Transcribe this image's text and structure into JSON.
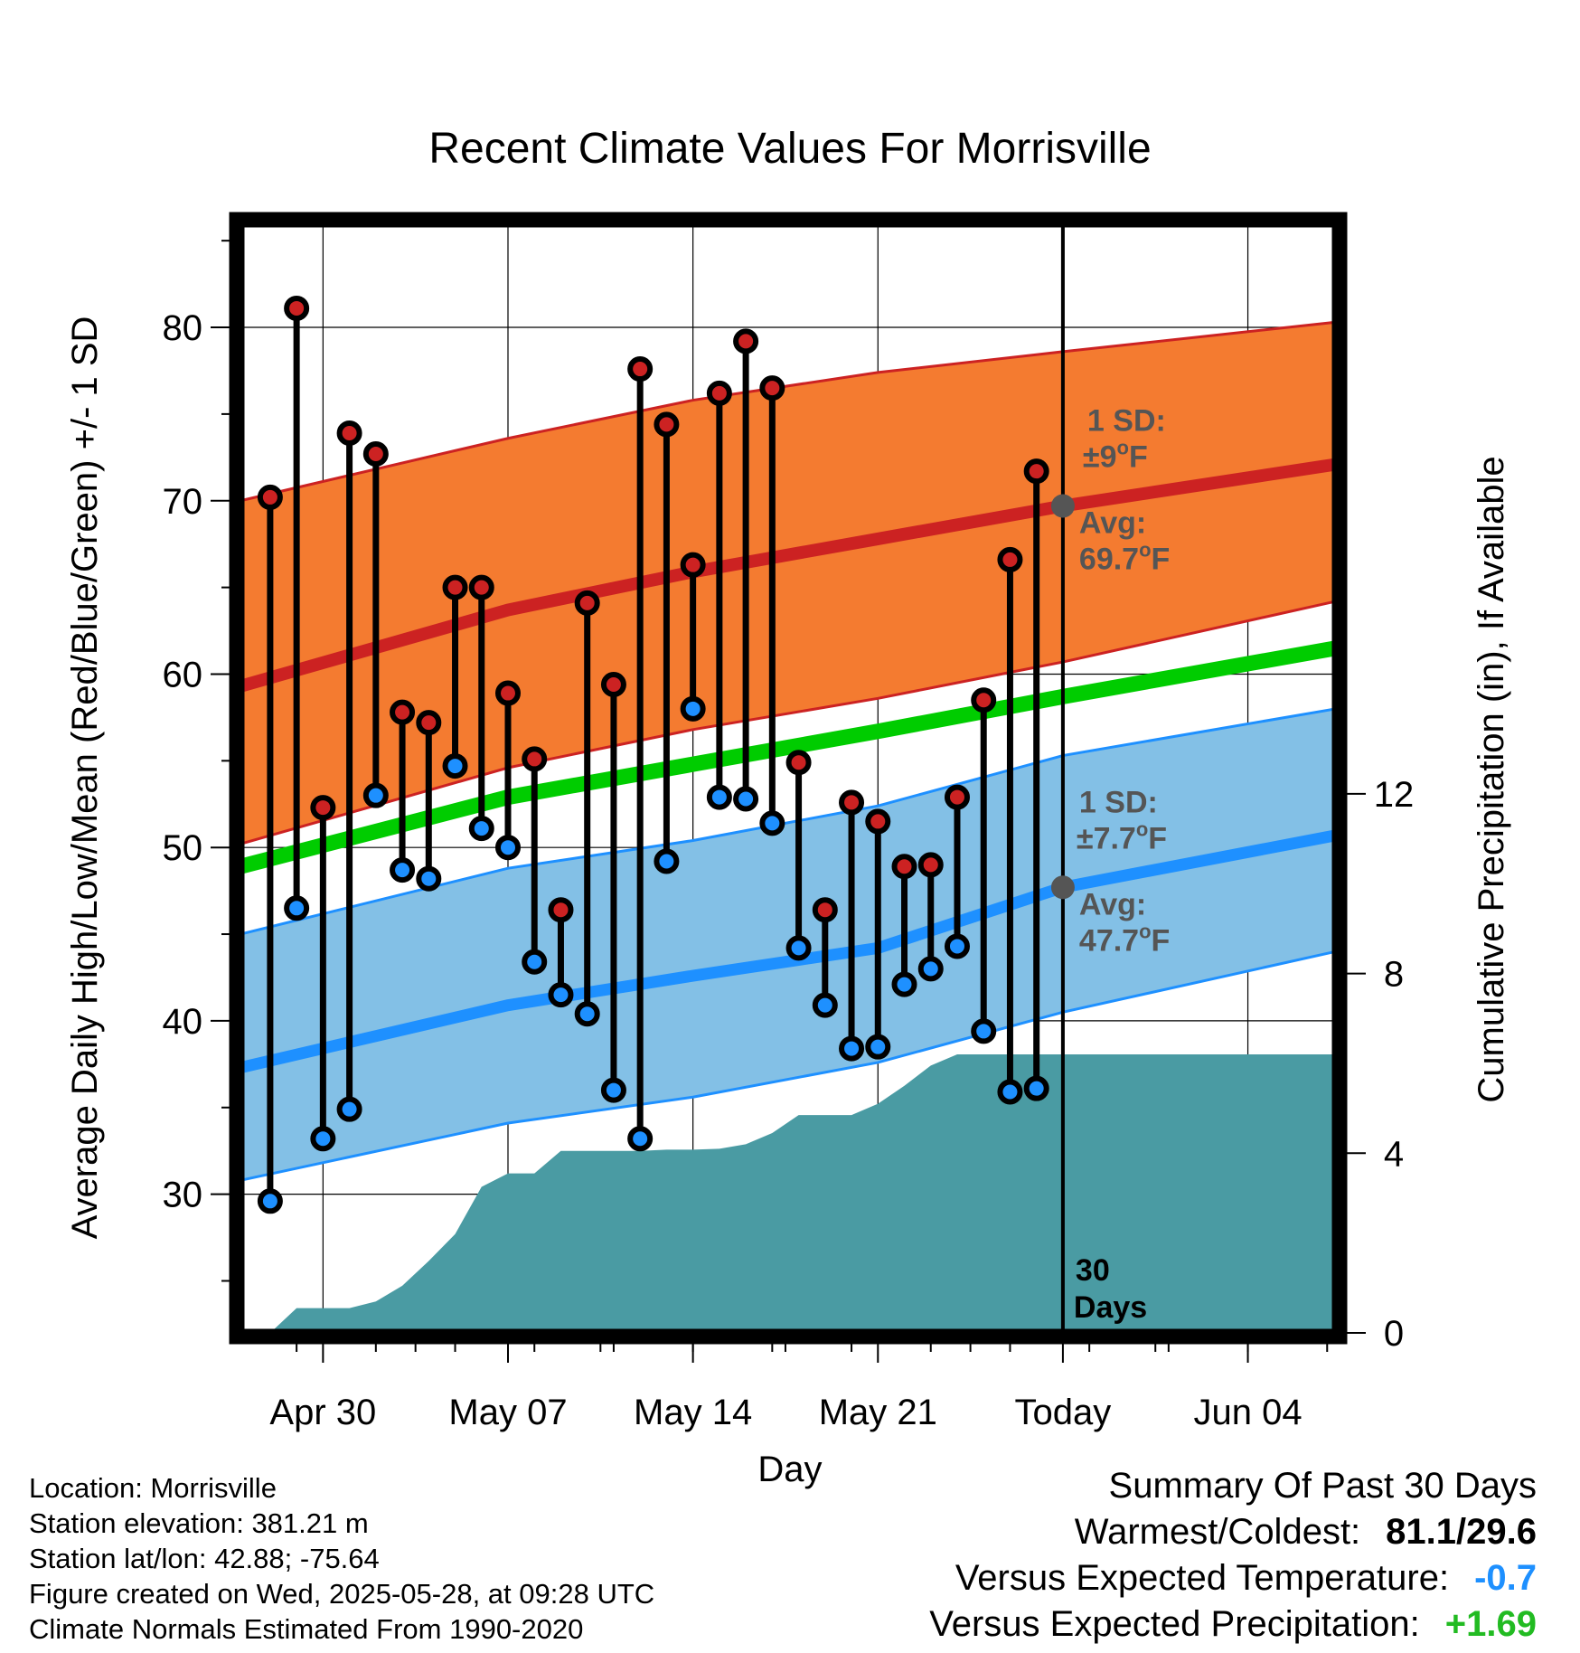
{
  "chart_data": {
    "type": "range-line",
    "title": "Recent Climate Values For Morrisville",
    "xlabel": "Day",
    "ylabel_left": "Average Daily High/Low/Mean (Red/Blue/Green) +/- 1 SD",
    "ylabel_right": "Cumulative Precipitation (in), If Available",
    "x_tick_labels": [
      "Apr 30",
      "May 07",
      "May 14",
      "May 21",
      "Today",
      "Jun 04"
    ],
    "x_tick_dates": [
      "2025-04-30",
      "2025-05-07",
      "2025-05-14",
      "2025-05-21",
      "2025-05-28",
      "2025-06-04"
    ],
    "xlim": [
      "2025-04-26T21:00",
      "2025-06-07T08:00"
    ],
    "y_left_ticks": [
      30,
      40,
      50,
      60,
      70,
      80
    ],
    "y_left_lim": [
      22,
      86
    ],
    "y_right_ticks": [
      0,
      4,
      8,
      12
    ],
    "y_right_lim": [
      0,
      24.7
    ],
    "grid": true,
    "today": "2025-05-28",
    "today_label": "30 Days",
    "colors": {
      "high_band": "#f47b30",
      "high_band_edge": "#cc2222",
      "high_mean": "#cc2222",
      "low_band": "#83c0e6",
      "low_band_edge": "#1e90ff",
      "low_mean": "#1e90ff",
      "mean_line": "#00cc00",
      "precip": "#4a9ba3",
      "high_dot": "#cc2222",
      "low_dot": "#1e90ff",
      "annotation": "#555555"
    },
    "normals": {
      "x": [
        "2025-04-26T21:00",
        "2025-05-07",
        "2025-05-14",
        "2025-05-21",
        "2025-05-28",
        "2025-06-07T08:00"
      ],
      "high_mean": [
        59.3,
        63.7,
        65.9,
        67.8,
        69.7,
        72.1
      ],
      "high_upper": [
        70.0,
        73.6,
        75.8,
        77.4,
        78.6,
        80.3
      ],
      "high_lower": [
        50.2,
        54.6,
        56.8,
        58.6,
        60.7,
        64.2
      ],
      "mean": [
        48.9,
        52.9,
        54.8,
        56.7,
        58.7,
        61.5
      ],
      "low_mean": [
        37.3,
        40.9,
        42.6,
        44.2,
        47.7,
        50.7
      ],
      "low_upper": [
        45.0,
        48.8,
        50.4,
        52.4,
        55.3,
        58.0
      ],
      "low_lower": [
        30.8,
        34.1,
        35.6,
        37.6,
        40.5,
        44.0
      ]
    },
    "daily": {
      "dates": [
        "2025-04-28",
        "2025-04-29",
        "2025-04-30",
        "2025-05-01",
        "2025-05-02",
        "2025-05-03",
        "2025-05-04",
        "2025-05-05",
        "2025-05-06",
        "2025-05-07",
        "2025-05-08",
        "2025-05-09",
        "2025-05-10",
        "2025-05-11",
        "2025-05-12",
        "2025-05-13",
        "2025-05-14",
        "2025-05-15",
        "2025-05-16",
        "2025-05-17",
        "2025-05-18",
        "2025-05-19",
        "2025-05-20",
        "2025-05-21",
        "2025-05-22",
        "2025-05-23",
        "2025-05-24",
        "2025-05-25",
        "2025-05-26",
        "2025-05-27"
      ],
      "high": [
        70.2,
        81.1,
        52.3,
        73.9,
        72.7,
        57.8,
        57.2,
        65.0,
        65.0,
        58.9,
        55.1,
        46.4,
        64.1,
        59.4,
        77.6,
        74.4,
        66.3,
        76.2,
        79.2,
        76.5,
        54.9,
        46.4,
        52.6,
        51.5,
        48.9,
        49.0,
        52.9,
        58.5,
        66.6,
        71.7
      ],
      "low": [
        29.6,
        46.5,
        33.2,
        34.9,
        53.0,
        48.7,
        48.2,
        54.7,
        51.1,
        50.0,
        43.4,
        41.5,
        40.4,
        36.0,
        33.2,
        49.2,
        58.0,
        52.9,
        52.8,
        51.4,
        44.2,
        40.9,
        38.4,
        38.5,
        42.1,
        43.0,
        44.3,
        39.4,
        35.9,
        36.1
      ]
    },
    "precip": {
      "dates": [
        "2025-04-28",
        "2025-04-29",
        "2025-04-30",
        "2025-05-01",
        "2025-05-02",
        "2025-05-03",
        "2025-05-04",
        "2025-05-05",
        "2025-05-06",
        "2025-05-07",
        "2025-05-08",
        "2025-05-09",
        "2025-05-10",
        "2025-05-11",
        "2025-05-12",
        "2025-05-13",
        "2025-05-14",
        "2025-05-15",
        "2025-05-16",
        "2025-05-17",
        "2025-05-18",
        "2025-05-19",
        "2025-05-20",
        "2025-05-21",
        "2025-05-22",
        "2025-05-23",
        "2025-05-24",
        "2025-05-25",
        "2025-05-26",
        "2025-05-27",
        "2025-05-28",
        "2025-06-07T08:00"
      ],
      "cumulative": [
        0.0,
        0.55,
        0.55,
        0.55,
        0.7,
        1.05,
        1.6,
        2.2,
        3.25,
        3.55,
        3.55,
        4.05,
        4.05,
        4.05,
        4.05,
        4.08,
        4.08,
        4.1,
        4.2,
        4.45,
        4.85,
        4.85,
        4.85,
        5.1,
        5.5,
        5.95,
        6.2,
        6.2,
        6.2,
        6.2,
        6.2,
        6.2
      ]
    },
    "annotations": {
      "high_sd_label": "1 SD:",
      "high_sd_value": "±9",
      "high_avg_label": "Avg:",
      "high_avg_value": "69.7",
      "low_sd_label": "1 SD:",
      "low_sd_value": "±7.7",
      "low_avg_label": "Avg:",
      "low_avg_value": "47.7",
      "degree_symbol": "o",
      "unit": "F"
    }
  },
  "footer": {
    "location": "Location: Morrisville",
    "elevation": "Station elevation: 381.21 m",
    "latlon": "Station lat/lon: 42.88; -75.64",
    "created": "Figure created on Wed, 2025-05-28, at 09:28 UTC",
    "normals_period": "Climate Normals Estimated From 1990-2020"
  },
  "summary": {
    "heading": "Summary Of Past 30 Days",
    "warmest_label": "Warmest/Coldest:",
    "warmest_value": "81.1/29.6",
    "temp_label": "Versus Expected Temperature:",
    "temp_value": "-0.7",
    "precip_label": "Versus Expected Precipitation:",
    "precip_value": "+1.69"
  }
}
